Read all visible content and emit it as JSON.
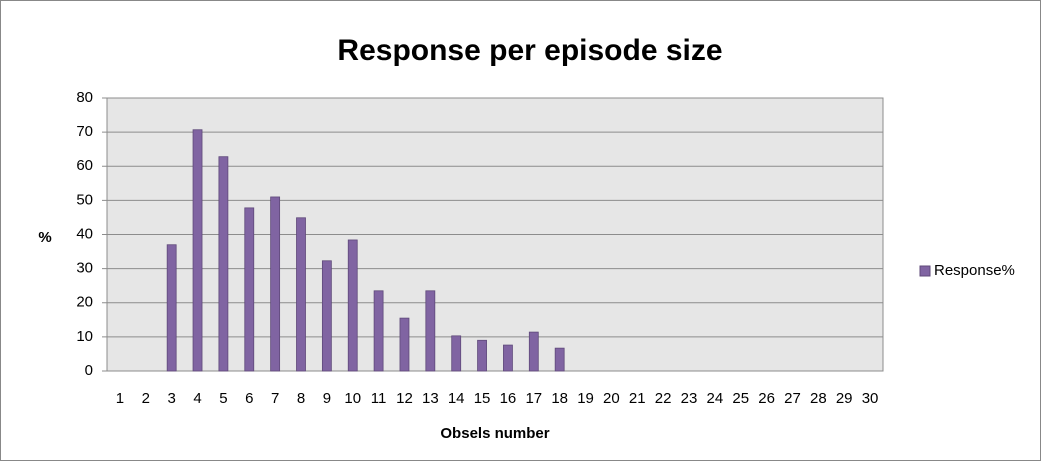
{
  "chart_data": {
    "type": "bar",
    "title": "Response per episode size",
    "xlabel": "Obsels number",
    "ylabel": "%",
    "categories": [
      "1",
      "2",
      "3",
      "4",
      "5",
      "6",
      "7",
      "8",
      "9",
      "10",
      "11",
      "12",
      "13",
      "14",
      "15",
      "16",
      "17",
      "18",
      "19",
      "20",
      "21",
      "22",
      "23",
      "24",
      "25",
      "26",
      "27",
      "28",
      "29",
      "30"
    ],
    "series": [
      {
        "name": "Response%",
        "color": "#8064a2",
        "values": [
          0,
          0,
          37,
          70.7,
          62.8,
          47.8,
          51,
          44.9,
          32.3,
          38.4,
          23.5,
          15.5,
          23.5,
          10.3,
          9,
          7.6,
          11.4,
          6.7,
          0,
          0,
          0,
          0,
          0,
          0,
          0,
          0,
          0,
          0,
          0,
          0
        ]
      }
    ],
    "ylim": [
      0,
      80
    ],
    "yticks": [
      0,
      10,
      20,
      30,
      40,
      50,
      60,
      70,
      80
    ],
    "grid": true,
    "legend": "right"
  }
}
